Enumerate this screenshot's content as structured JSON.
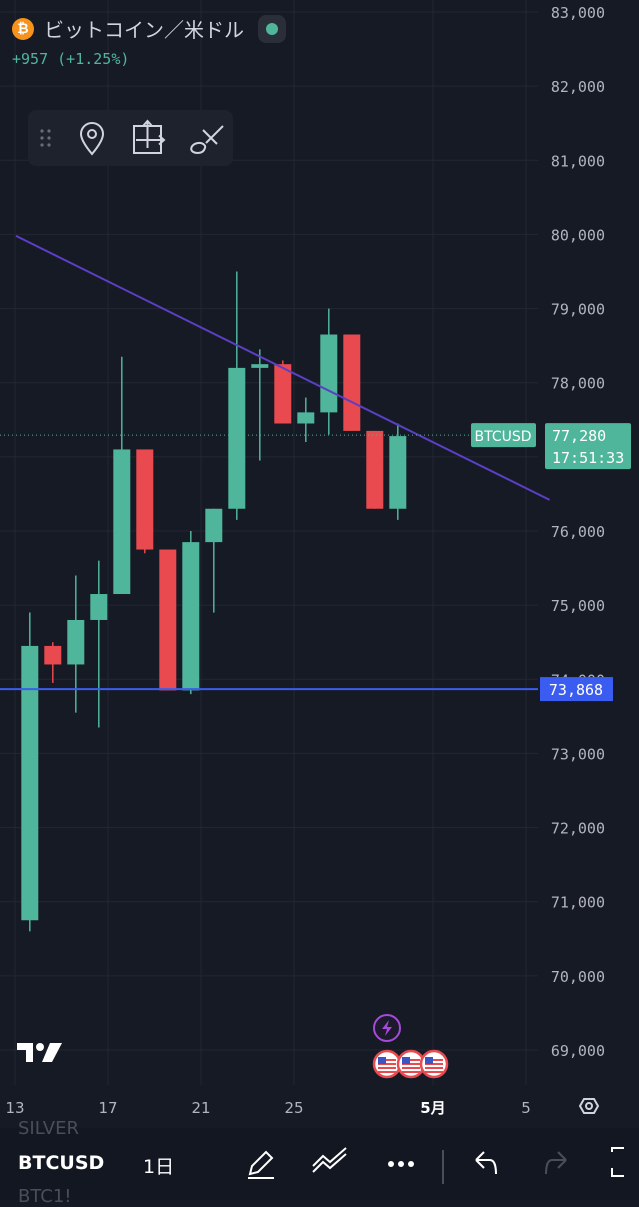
{
  "header": {
    "coin_glyph": "₿",
    "title": "ビットコイン／米ドル",
    "change": "+957 (+1.25%)"
  },
  "toolbox": {
    "icons": [
      "drag-handle-icon",
      "pin-icon",
      "measure-icon",
      "brush-icon"
    ]
  },
  "colors": {
    "bg": "#161a25",
    "up": "#4fb59b",
    "down": "#e84a4f",
    "trendline": "#5b3fc4",
    "hline": "#3a5cf0",
    "grid": "#232733",
    "label": "#b2b5be"
  },
  "chart_data": {
    "type": "candlestick",
    "symbol_label": "BTCUSD",
    "ylim": [
      68600,
      83100
    ],
    "y_ticks": [
      "83,000",
      "82,000",
      "81,000",
      "80,000",
      "79,000",
      "78,000",
      "77,000",
      "76,000",
      "75,000",
      "74,000",
      "73,000",
      "72,000",
      "71,000",
      "70,000",
      "69,000"
    ],
    "x_ticks": [
      "13",
      "17",
      "21",
      "25",
      "5月",
      "5"
    ],
    "last_price": "77,280",
    "countdown": "17:51:33",
    "hline_price": "73,868",
    "hline_value": 73868,
    "trendline": [
      {
        "day": 0,
        "price": 79980
      },
      {
        "day": 23.2,
        "price": 76420
      }
    ],
    "candles": [
      {
        "day": 0.6,
        "o": 70750,
        "h": 74900,
        "l": 70600,
        "c": 74450
      },
      {
        "day": 1.6,
        "o": 74450,
        "h": 74500,
        "l": 73950,
        "c": 74200
      },
      {
        "day": 2.6,
        "o": 74200,
        "h": 75400,
        "l": 73550,
        "c": 74800
      },
      {
        "day": 3.6,
        "o": 74800,
        "h": 75600,
        "l": 73350,
        "c": 75150
      },
      {
        "day": 4.6,
        "o": 75150,
        "h": 78350,
        "l": 75150,
        "c": 77100
      },
      {
        "day": 5.6,
        "o": 77100,
        "h": 77100,
        "l": 75700,
        "c": 75750
      },
      {
        "day": 6.6,
        "o": 75750,
        "h": 75750,
        "l": 73850,
        "c": 73850
      },
      {
        "day": 7.6,
        "o": 73850,
        "h": 76000,
        "l": 73800,
        "c": 75850
      },
      {
        "day": 8.6,
        "o": 75850,
        "h": 76300,
        "l": 74900,
        "c": 76300
      },
      {
        "day": 9.6,
        "o": 76300,
        "h": 79500,
        "l": 76150,
        "c": 78200
      },
      {
        "day": 10.6,
        "o": 78200,
        "h": 78450,
        "l": 76950,
        "c": 78250
      },
      {
        "day": 11.6,
        "o": 78250,
        "h": 78300,
        "l": 77450,
        "c": 77450
      },
      {
        "day": 12.6,
        "o": 77450,
        "h": 77800,
        "l": 77200,
        "c": 77600
      },
      {
        "day": 13.6,
        "o": 77600,
        "h": 79000,
        "l": 77300,
        "c": 78650
      },
      {
        "day": 14.6,
        "o": 78650,
        "h": 78650,
        "l": 77350,
        "c": 77350
      },
      {
        "day": 15.6,
        "o": 77350,
        "h": 77350,
        "l": 76300,
        "c": 76300
      },
      {
        "day": 16.6,
        "o": 76300,
        "h": 77450,
        "l": 76150,
        "c": 77280
      }
    ],
    "x_map": {
      "day0_px": 0,
      "px_per_day": 23.0
    },
    "events": [
      "lightning-event-icon",
      "us-flag-icon",
      "us-flag-icon",
      "us-flag-icon"
    ]
  },
  "bottombar": {
    "symbol": "BTCUSD",
    "interval": "1日",
    "ghost_above": "SILVER",
    "ghost_below": "BTC1!"
  }
}
